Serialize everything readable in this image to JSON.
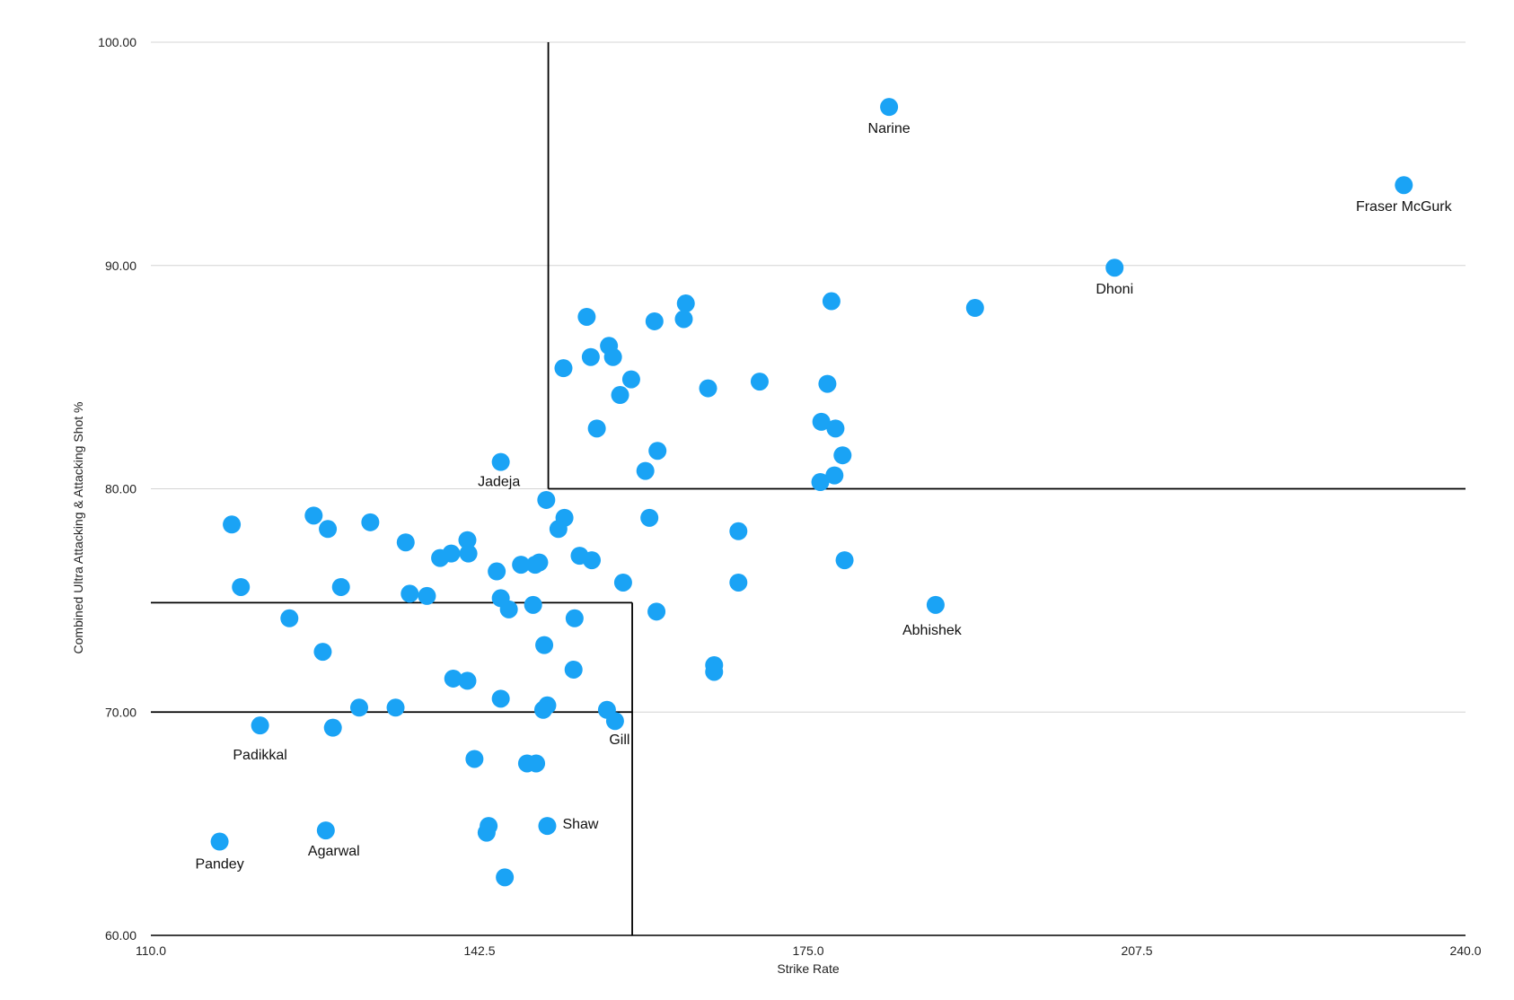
{
  "chart_data": {
    "type": "scatter",
    "title": "",
    "xlabel": "Strike Rate",
    "ylabel": "Combined Ultra Attacking & Attacking Shot %",
    "xlim": [
      110,
      240
    ],
    "ylim": [
      60,
      100
    ],
    "x_ticks": [
      "110.0",
      "142.5",
      "175.0",
      "207.5",
      "240.0"
    ],
    "y_ticks": [
      "60.00",
      "70.00",
      "80.00",
      "90.00",
      "100.00"
    ],
    "grid": true,
    "legend": "none",
    "point_color": "#1aa3f5",
    "reference_lines": [
      {
        "x": [
          149.3,
          149.3
        ],
        "y": [
          100,
          80
        ]
      },
      {
        "x": [
          149.3,
          240
        ],
        "y": [
          80,
          80
        ]
      },
      {
        "x": [
          110,
          157.6
        ],
        "y": [
          74.9,
          74.9
        ]
      },
      {
        "x": [
          157.6,
          157.6
        ],
        "y": [
          74.9,
          60
        ]
      },
      {
        "x": [
          110,
          157.6
        ],
        "y": [
          70,
          70
        ]
      }
    ],
    "points": [
      {
        "x": 183.0,
        "y": 97.1,
        "label": "Narine"
      },
      {
        "x": 233.9,
        "y": 93.6,
        "label": "Fraser McGurk"
      },
      {
        "x": 205.3,
        "y": 89.9,
        "label": "Dhoni"
      },
      {
        "x": 191.5,
        "y": 88.1
      },
      {
        "x": 177.3,
        "y": 88.4
      },
      {
        "x": 162.9,
        "y": 88.3
      },
      {
        "x": 162.7,
        "y": 87.6
      },
      {
        "x": 153.1,
        "y": 87.7
      },
      {
        "x": 159.8,
        "y": 87.5
      },
      {
        "x": 155.3,
        "y": 86.4
      },
      {
        "x": 153.5,
        "y": 85.9
      },
      {
        "x": 155.7,
        "y": 85.9
      },
      {
        "x": 150.8,
        "y": 85.4
      },
      {
        "x": 157.5,
        "y": 84.9
      },
      {
        "x": 176.9,
        "y": 84.7
      },
      {
        "x": 170.2,
        "y": 84.8
      },
      {
        "x": 165.1,
        "y": 84.5
      },
      {
        "x": 156.4,
        "y": 84.2
      },
      {
        "x": 154.1,
        "y": 82.7
      },
      {
        "x": 176.3,
        "y": 83.0
      },
      {
        "x": 177.7,
        "y": 82.7
      },
      {
        "x": 160.1,
        "y": 81.7
      },
      {
        "x": 178.4,
        "y": 81.5
      },
      {
        "x": 144.6,
        "y": 81.2,
        "label": "Jadeja"
      },
      {
        "x": 158.9,
        "y": 80.8
      },
      {
        "x": 177.6,
        "y": 80.6
      },
      {
        "x": 176.2,
        "y": 80.3
      },
      {
        "x": 149.1,
        "y": 79.5
      },
      {
        "x": 150.9,
        "y": 78.7
      },
      {
        "x": 159.3,
        "y": 78.7
      },
      {
        "x": 150.3,
        "y": 78.2
      },
      {
        "x": 168.1,
        "y": 78.1
      },
      {
        "x": 118.0,
        "y": 78.4
      },
      {
        "x": 126.1,
        "y": 78.8
      },
      {
        "x": 127.5,
        "y": 78.2
      },
      {
        "x": 131.7,
        "y": 78.5
      },
      {
        "x": 135.2,
        "y": 77.6
      },
      {
        "x": 141.3,
        "y": 77.7
      },
      {
        "x": 139.7,
        "y": 77.1
      },
      {
        "x": 141.4,
        "y": 77.1
      },
      {
        "x": 138.6,
        "y": 76.9
      },
      {
        "x": 152.4,
        "y": 77.0
      },
      {
        "x": 153.6,
        "y": 76.8
      },
      {
        "x": 178.6,
        "y": 76.8
      },
      {
        "x": 146.6,
        "y": 76.6
      },
      {
        "x": 148.4,
        "y": 76.7
      },
      {
        "x": 144.2,
        "y": 76.3
      },
      {
        "x": 148.0,
        "y": 76.6
      },
      {
        "x": 156.7,
        "y": 75.8
      },
      {
        "x": 168.1,
        "y": 75.8
      },
      {
        "x": 118.9,
        "y": 75.6
      },
      {
        "x": 128.8,
        "y": 75.6
      },
      {
        "x": 135.6,
        "y": 75.3
      },
      {
        "x": 137.3,
        "y": 75.2
      },
      {
        "x": 144.6,
        "y": 75.1
      },
      {
        "x": 187.6,
        "y": 74.8,
        "label": "Abhishek"
      },
      {
        "x": 147.8,
        "y": 74.8
      },
      {
        "x": 145.4,
        "y": 74.6
      },
      {
        "x": 160.0,
        "y": 74.5
      },
      {
        "x": 123.7,
        "y": 74.2
      },
      {
        "x": 151.9,
        "y": 74.2
      },
      {
        "x": 148.9,
        "y": 73.0
      },
      {
        "x": 127.0,
        "y": 72.7
      },
      {
        "x": 165.7,
        "y": 72.1
      },
      {
        "x": 165.7,
        "y": 71.8
      },
      {
        "x": 151.8,
        "y": 71.9
      },
      {
        "x": 139.9,
        "y": 71.5
      },
      {
        "x": 141.3,
        "y": 71.4
      },
      {
        "x": 144.6,
        "y": 70.6
      },
      {
        "x": 149.2,
        "y": 70.3
      },
      {
        "x": 148.8,
        "y": 70.1
      },
      {
        "x": 130.6,
        "y": 70.2
      },
      {
        "x": 134.2,
        "y": 70.2
      },
      {
        "x": 155.1,
        "y": 70.1
      },
      {
        "x": 155.9,
        "y": 69.6,
        "label": "Gill"
      },
      {
        "x": 120.8,
        "y": 69.4,
        "label": "Padikkal"
      },
      {
        "x": 128.0,
        "y": 69.3
      },
      {
        "x": 142.0,
        "y": 67.9
      },
      {
        "x": 147.2,
        "y": 67.7
      },
      {
        "x": 148.1,
        "y": 67.7
      },
      {
        "x": 143.4,
        "y": 64.9
      },
      {
        "x": 143.2,
        "y": 64.6
      },
      {
        "x": 149.2,
        "y": 64.9,
        "label": "Shaw"
      },
      {
        "x": 127.3,
        "y": 64.7,
        "label": "Agarwal"
      },
      {
        "x": 116.8,
        "y": 64.2,
        "label": "Pandey"
      },
      {
        "x": 145.0,
        "y": 62.6
      }
    ]
  }
}
